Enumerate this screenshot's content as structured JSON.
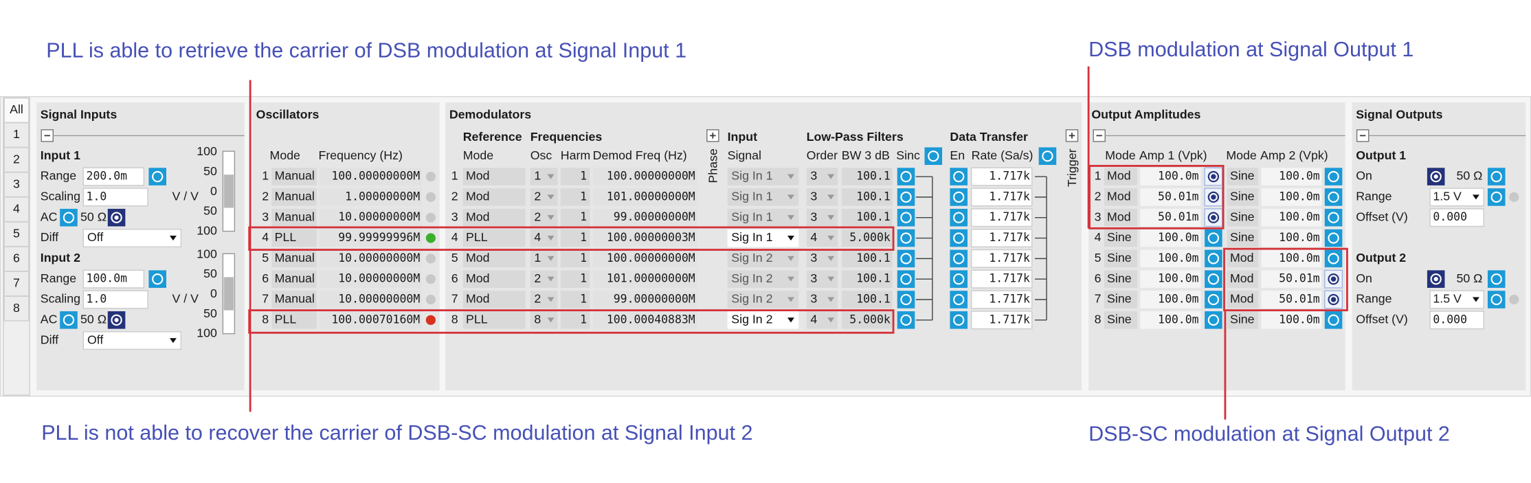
{
  "annotations": {
    "top_left": "PLL is able to retrieve the carrier of DSB modulation at Signal Input 1",
    "top_right": "DSB modulation at Signal Output 1",
    "bottom_left": "PLL is not able to recover the carrier of DSB-SC modulation at Signal Input 2",
    "bottom_right": "DSB-SC modulation at Signal Output 2"
  },
  "tabs": [
    "All",
    "1",
    "2",
    "3",
    "4",
    "5",
    "6",
    "7",
    "8"
  ],
  "signal_inputs": {
    "title": "Signal Inputs",
    "inputs": [
      {
        "title": "Input 1",
        "range_label": "Range",
        "range": "200.0m",
        "scaling_label": "Scaling",
        "scaling": "1.0",
        "scaling_unit": "V / V",
        "ac_label": "AC",
        "impedance": "50 Ω",
        "diff_label": "Diff",
        "diff": "Off"
      },
      {
        "title": "Input 2",
        "range_label": "Range",
        "range": "100.0m",
        "scaling_label": "Scaling",
        "scaling": "1.0",
        "scaling_unit": "V / V",
        "ac_label": "AC",
        "impedance": "50 Ω",
        "diff_label": "Diff",
        "diff": "Off"
      }
    ],
    "meter_ticks": [
      "100",
      "50",
      "0",
      "50",
      "100"
    ]
  },
  "oscillators": {
    "title": "Oscillators",
    "headers": [
      "Mode",
      "Frequency (Hz)"
    ],
    "rows": [
      [
        "1",
        "Manual",
        "100.00000000M"
      ],
      [
        "2",
        "Manual",
        "1.00000000M"
      ],
      [
        "3",
        "Manual",
        "10.00000000M"
      ],
      [
        "4",
        "PLL",
        "99.99999996M"
      ],
      [
        "5",
        "Manual",
        "10.00000000M"
      ],
      [
        "6",
        "Manual",
        "10.00000000M"
      ],
      [
        "7",
        "Manual",
        "10.00000000M"
      ],
      [
        "8",
        "PLL",
        "100.00070160M"
      ]
    ],
    "led_colors": [
      "#c8c8c8",
      "#c8c8c8",
      "#c8c8c8",
      "#3cb02c",
      "#c8c8c8",
      "#c8c8c8",
      "#c8c8c8",
      "#d8321e"
    ]
  },
  "demodulators": {
    "title": "Demodulators",
    "groups": {
      "reference": "Reference",
      "frequencies": "Frequencies",
      "input": "Input",
      "filters": "Low-Pass Filters",
      "transfer": "Data Transfer",
      "phase": "Phase",
      "trigger": "Trigger"
    },
    "headers": {
      "mode": "Mode",
      "osc": "Osc",
      "harm": "Harm",
      "freq": "Demod Freq (Hz)",
      "signal": "Signal",
      "order": "Order",
      "bw": "BW 3 dB",
      "sinc": "Sinc",
      "en": "En",
      "rate": "Rate (Sa/s)"
    },
    "rows": [
      [
        "1",
        "Mod",
        "1",
        "1",
        "100.00000000M",
        "Sig In 1",
        "3",
        "100.1",
        "1.717k"
      ],
      [
        "2",
        "Mod",
        "2",
        "1",
        "101.00000000M",
        "Sig In 1",
        "3",
        "100.1",
        "1.717k"
      ],
      [
        "3",
        "Mod",
        "2",
        "1",
        "99.00000000M",
        "Sig In 1",
        "3",
        "100.1",
        "1.717k"
      ],
      [
        "4",
        "PLL",
        "4",
        "1",
        "100.00000003M",
        "Sig In 1",
        "4",
        "5.000k",
        "1.717k"
      ],
      [
        "5",
        "Mod",
        "1",
        "1",
        "100.00000000M",
        "Sig In 2",
        "3",
        "100.1",
        "1.717k"
      ],
      [
        "6",
        "Mod",
        "2",
        "1",
        "101.00000000M",
        "Sig In 2",
        "3",
        "100.1",
        "1.717k"
      ],
      [
        "7",
        "Mod",
        "2",
        "1",
        "99.00000000M",
        "Sig In 2",
        "3",
        "100.1",
        "1.717k"
      ],
      [
        "8",
        "PLL",
        "8",
        "1",
        "100.00040883M",
        "Sig In 2",
        "4",
        "5.000k",
        "1.717k"
      ]
    ]
  },
  "output_amplitudes": {
    "title": "Output Amplitudes",
    "headers": [
      "Mode",
      "Amp 1 (Vpk)",
      "Mode",
      "Amp 2 (Vpk)"
    ],
    "rows": [
      [
        "1",
        "Mod",
        "100.0m",
        "Sine",
        "100.0m"
      ],
      [
        "2",
        "Mod",
        "50.01m",
        "Sine",
        "100.0m"
      ],
      [
        "3",
        "Mod",
        "50.01m",
        "Sine",
        "100.0m"
      ],
      [
        "4",
        "Sine",
        "100.0m",
        "Sine",
        "100.0m"
      ],
      [
        "5",
        "Sine",
        "100.0m",
        "Mod",
        "100.0m"
      ],
      [
        "6",
        "Sine",
        "100.0m",
        "Mod",
        "50.01m"
      ],
      [
        "7",
        "Sine",
        "100.0m",
        "Mod",
        "50.01m"
      ],
      [
        "8",
        "Sine",
        "100.0m",
        "Sine",
        "100.0m"
      ]
    ],
    "amp1_enabled": [
      true,
      true,
      true,
      false,
      false,
      false,
      false,
      false
    ],
    "amp2_enabled": [
      false,
      false,
      false,
      false,
      false,
      true,
      true,
      false
    ]
  },
  "signal_outputs": {
    "title": "Signal Outputs",
    "outputs": [
      {
        "title": "Output 1",
        "on_label": "On",
        "impedance": "50 Ω",
        "range_label": "Range",
        "range": "1.5 V",
        "offset_label": "Offset (V)",
        "offset": "0.000"
      },
      {
        "title": "Output 2",
        "on_label": "On",
        "impedance": "50 Ω",
        "range_label": "Range",
        "range": "1.5 V",
        "offset_label": "Offset (V)",
        "offset": "0.000"
      }
    ]
  }
}
